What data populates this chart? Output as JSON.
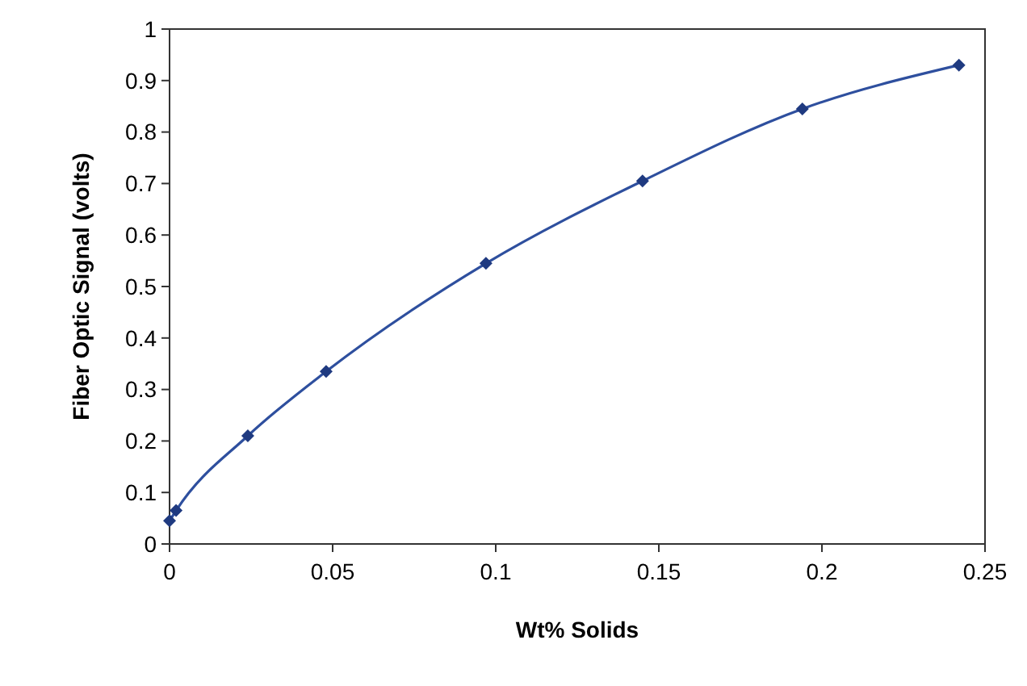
{
  "chart_data": {
    "type": "line",
    "xlabel": "Wt% Solids",
    "ylabel": "Fiber Optic Signal (volts)",
    "x": [
      0,
      0.002,
      0.024,
      0.048,
      0.097,
      0.145,
      0.194,
      0.242
    ],
    "series": [
      {
        "color": "#2e4f9e",
        "values": [
          0.045,
          0.065,
          0.21,
          0.335,
          0.545,
          0.705,
          0.845,
          0.93
        ]
      }
    ],
    "xlim": [
      0,
      0.25
    ],
    "xticks": [
      0,
      0.05,
      0.1,
      0.15,
      0.2,
      0.25
    ],
    "ylim": [
      0,
      1
    ],
    "yticks": [
      0,
      0.1,
      0.2,
      0.3,
      0.4,
      0.5,
      0.6,
      0.7,
      0.8,
      0.9,
      1
    ],
    "marker": "diamond",
    "line_style": "solid"
  }
}
